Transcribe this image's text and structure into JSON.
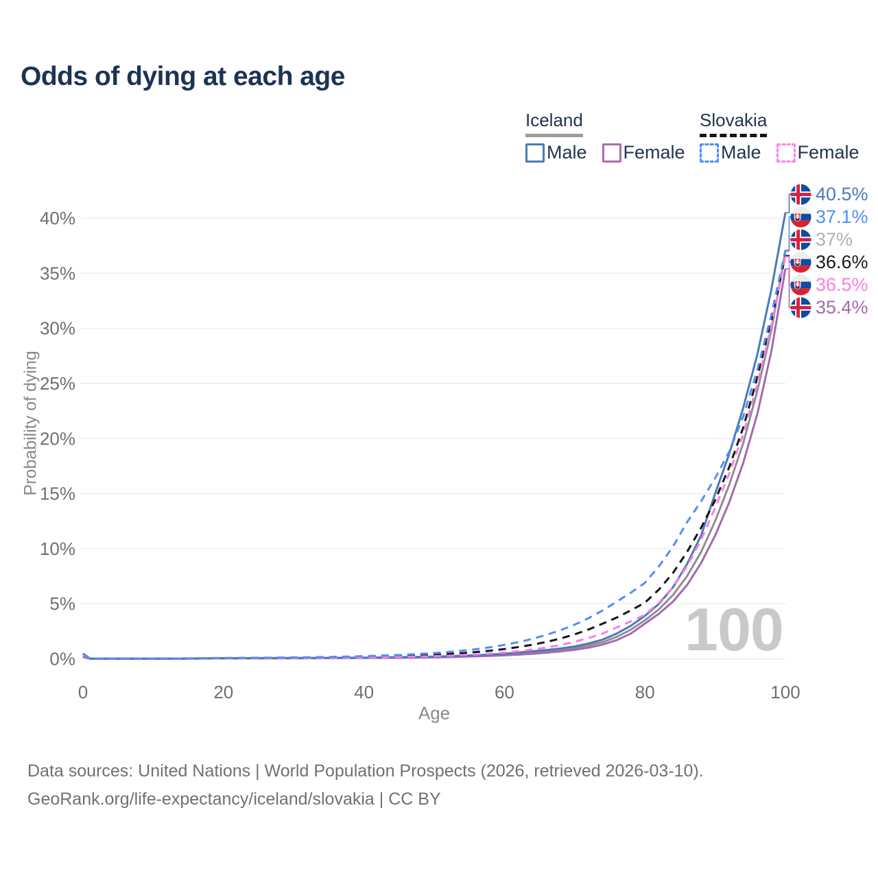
{
  "chart_data": {
    "type": "line",
    "title": "Odds of dying at each age",
    "xlabel": "Age",
    "ylabel": "Probability of dying",
    "xlim": [
      0,
      100
    ],
    "ylim": [
      0,
      42
    ],
    "grid": "horizontal-only",
    "x_ticks": [
      0,
      20,
      40,
      60,
      80,
      100
    ],
    "y_ticks": [
      0,
      5,
      10,
      15,
      20,
      25,
      30,
      35,
      40
    ],
    "y_tick_labels": [
      "0%",
      "5%",
      "10%",
      "15%",
      "20%",
      "25%",
      "30%",
      "35%",
      "40%"
    ],
    "age_cursor": "100",
    "ages": [
      0,
      1,
      2,
      5,
      10,
      15,
      20,
      25,
      30,
      35,
      40,
      45,
      50,
      52,
      54,
      56,
      58,
      60,
      62,
      64,
      66,
      68,
      70,
      72,
      74,
      76,
      78,
      80,
      82,
      84,
      86,
      88,
      90,
      92,
      94,
      96,
      98,
      100
    ],
    "series": [
      {
        "id": "iceland-all",
        "name": "Iceland Both sexes",
        "country": "iceland",
        "line": "solid",
        "color": "#8f8f8f",
        "end_label": "37%",
        "label_color": "#b0b0b0",
        "values": [
          0.2,
          0.02,
          0.01,
          0.01,
          0.01,
          0.02,
          0.05,
          0.06,
          0.07,
          0.08,
          0.09,
          0.12,
          0.17,
          0.2,
          0.23,
          0.27,
          0.32,
          0.39,
          0.47,
          0.57,
          0.69,
          0.83,
          0.98,
          1.22,
          1.52,
          2.0,
          2.65,
          3.5,
          4.5,
          5.8,
          7.5,
          9.7,
          12.5,
          15.8,
          19.6,
          24.3,
          29.8,
          37.0
        ]
      },
      {
        "id": "iceland-female",
        "name": "Iceland Female",
        "country": "iceland",
        "line": "solid",
        "color": "#a569ad",
        "end_label": "35.4%",
        "label_color": "#a569ad",
        "values": [
          0.19,
          0.02,
          0.01,
          0.01,
          0.01,
          0.02,
          0.03,
          0.04,
          0.05,
          0.06,
          0.08,
          0.1,
          0.14,
          0.16,
          0.19,
          0.23,
          0.27,
          0.32,
          0.38,
          0.46,
          0.56,
          0.68,
          0.82,
          1.02,
          1.3,
          1.7,
          2.3,
          3.2,
          4.1,
          5.2,
          6.7,
          8.7,
          11.2,
          14.2,
          17.8,
          22.2,
          27.9,
          35.4
        ]
      },
      {
        "id": "iceland-male",
        "name": "Iceland Male",
        "country": "iceland",
        "line": "solid",
        "color": "#4a7ab8",
        "end_label": "40.5%",
        "label_color": "#4a7ab8",
        "values": [
          0.22,
          0.02,
          0.01,
          0.01,
          0.01,
          0.03,
          0.06,
          0.07,
          0.08,
          0.09,
          0.11,
          0.15,
          0.2,
          0.24,
          0.28,
          0.33,
          0.39,
          0.47,
          0.57,
          0.69,
          0.8,
          0.94,
          1.12,
          1.4,
          1.75,
          2.3,
          3.0,
          3.9,
          5.0,
          6.5,
          8.6,
          11.2,
          15.0,
          18.6,
          22.8,
          27.6,
          33.5,
          40.5
        ]
      },
      {
        "id": "slovakia-all",
        "name": "Slovakia Both sexes",
        "country": "slovakia",
        "line": "dashed",
        "color": "#151515",
        "end_label": "36.6%",
        "label_color": "#1a1a1a",
        "values": [
          0.44,
          0.03,
          0.02,
          0.01,
          0.01,
          0.03,
          0.06,
          0.07,
          0.09,
          0.12,
          0.17,
          0.25,
          0.37,
          0.44,
          0.52,
          0.62,
          0.74,
          0.89,
          1.07,
          1.28,
          1.54,
          1.85,
          2.22,
          2.67,
          3.2,
          3.75,
          4.4,
          5.1,
          6.3,
          7.8,
          9.7,
          11.9,
          14.4,
          17.4,
          21.0,
          25.5,
          30.7,
          36.6
        ]
      },
      {
        "id": "slovakia-female",
        "name": "Slovakia Female",
        "country": "slovakia",
        "line": "dashed",
        "color": "#f97de6",
        "end_label": "36.5%",
        "label_color": "#f97de6",
        "values": [
          0.4,
          0.03,
          0.01,
          0.01,
          0.01,
          0.02,
          0.04,
          0.05,
          0.06,
          0.08,
          0.11,
          0.16,
          0.24,
          0.28,
          0.34,
          0.4,
          0.48,
          0.58,
          0.7,
          0.85,
          1.03,
          1.26,
          1.55,
          1.9,
          2.3,
          2.85,
          3.4,
          4.0,
          5.1,
          6.5,
          8.4,
          10.8,
          13.7,
          16.8,
          20.4,
          24.9,
          30.2,
          36.5
        ]
      },
      {
        "id": "slovakia-male",
        "name": "Slovakia Male",
        "country": "slovakia",
        "line": "dashed",
        "color": "#4e8ef7",
        "end_label": "37.1%",
        "label_color": "#4e8ef7",
        "values": [
          0.5,
          0.04,
          0.02,
          0.01,
          0.02,
          0.04,
          0.08,
          0.1,
          0.13,
          0.17,
          0.24,
          0.35,
          0.52,
          0.62,
          0.74,
          0.88,
          1.05,
          1.27,
          1.52,
          1.82,
          2.18,
          2.6,
          3.1,
          3.7,
          4.4,
          5.2,
          6.0,
          6.9,
          8.4,
          10.2,
          12.4,
          14.3,
          16.4,
          18.8,
          22.0,
          26.2,
          31.2,
          37.1
        ]
      }
    ],
    "end_label_order": [
      "iceland-male",
      "slovakia-male",
      "iceland-all",
      "slovakia-all",
      "slovakia-female",
      "iceland-female"
    ],
    "legend_position": "top-right"
  },
  "legend": {
    "groups": [
      {
        "name": "Iceland",
        "underline": "solid",
        "underline_color": "#9c9c9c",
        "items": [
          {
            "label": "Male",
            "swatch_color": "#4a7ab8",
            "swatch_style": "solid"
          },
          {
            "label": "Female",
            "swatch_color": "#ab6cb0",
            "swatch_style": "solid"
          }
        ]
      },
      {
        "name": "Slovakia",
        "underline": "dashed",
        "underline_color": "#141414",
        "items": [
          {
            "label": "Male",
            "swatch_color": "#4e8ef7",
            "swatch_style": "dashed"
          },
          {
            "label": "Female",
            "swatch_color": "#fb85e8",
            "swatch_style": "dashed"
          }
        ]
      }
    ]
  },
  "footer": {
    "line1": "Data sources: United Nations | World Population Prospects (2026, retrieved 2026-03-10).",
    "line2": "GeoRank.org/life-expectancy/iceland/slovakia | CC BY"
  },
  "colors": {
    "title": "#1c3353",
    "axis_text": "#8a8a8a",
    "tick_text": "#6f6f6f",
    "grid": "#ebebeb",
    "watermark": "#c9c9c9",
    "iceland_flag_blue": "#0b4da2",
    "iceland_flag_red": "#d8203a",
    "slovakia_flag_blue": "#0b4ea2",
    "slovakia_flag_red": "#d8232f"
  }
}
